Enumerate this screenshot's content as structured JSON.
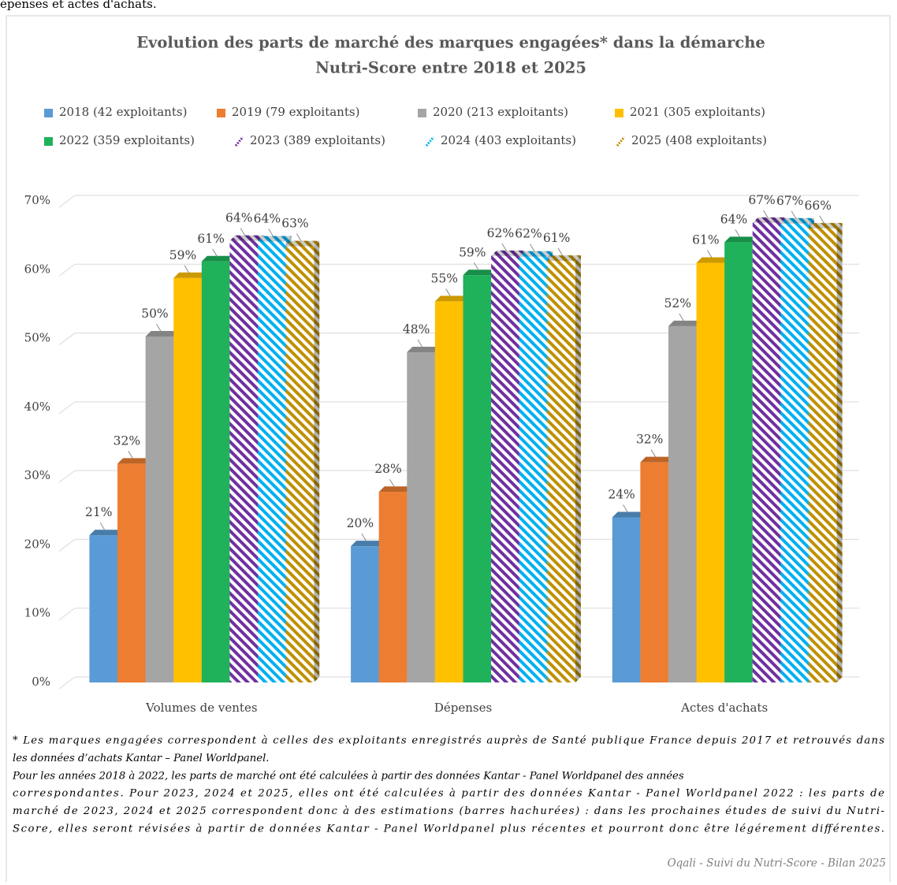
{
  "intro": "épenses et actes d'achats.",
  "chart_data": {
    "type": "bar",
    "title": [
      "Evolution des parts de marché des marques engagées* dans la démarche",
      "Nutri-Score entre 2018 et 2025"
    ],
    "categories": [
      "Volumes de ventes",
      "Dépenses",
      "Actes d'achats"
    ],
    "series": [
      {
        "name": "2018 (42 exploitants)",
        "color": "#5b9bd5",
        "hatched": false,
        "values": [
          21.4,
          19.8,
          24.0
        ],
        "value_labels": [
          "21%",
          "20%",
          "24%"
        ]
      },
      {
        "name": "2019 (79 exploitants)",
        "color": "#ed7d31",
        "hatched": false,
        "values": [
          31.8,
          27.7,
          32.0
        ],
        "value_labels": [
          "32%",
          "28%",
          "32%"
        ]
      },
      {
        "name": "2020 (213 exploitants)",
        "color": "#a5a5a5",
        "hatched": false,
        "values": [
          50.3,
          48.0,
          51.8
        ],
        "value_labels": [
          "50%",
          "48%",
          "52%"
        ]
      },
      {
        "name": "2021 (305 exploitants)",
        "color": "#ffc000",
        "hatched": false,
        "values": [
          58.8,
          55.4,
          61.0
        ],
        "value_labels": [
          "59%",
          "55%",
          "61%"
        ]
      },
      {
        "name": "2022 (359 exploitants)",
        "color": "#1fb25a",
        "hatched": false,
        "values": [
          61.2,
          59.2,
          64.0
        ],
        "value_labels": [
          "61%",
          "59%",
          "64%"
        ]
      },
      {
        "name": "2023 (389 exploitants)",
        "color": "#7030a0",
        "hatched": true,
        "values": [
          64.2,
          62.0,
          66.8
        ],
        "value_labels": [
          "64%",
          "62%",
          "67%"
        ]
      },
      {
        "name": "2024 (403 exploitants)",
        "color": "#00b0f0",
        "hatched": true,
        "values": [
          64.1,
          61.9,
          66.7
        ],
        "value_labels": [
          "64%",
          "62%",
          "67%"
        ]
      },
      {
        "name": "2025 (408 exploitants)",
        "color": "#bf9000",
        "hatched": true,
        "values": [
          63.4,
          61.3,
          66.0
        ],
        "value_labels": [
          "63%",
          "61%",
          "66%"
        ]
      }
    ],
    "ylim": [
      0,
      70
    ],
    "yticks": [
      {
        "value": 0,
        "label": "0%"
      },
      {
        "value": 10,
        "label": "10%"
      },
      {
        "value": 20,
        "label": "20%"
      },
      {
        "value": 30,
        "label": "30%"
      },
      {
        "value": 40,
        "label": "40%"
      },
      {
        "value": 50,
        "label": "50%"
      },
      {
        "value": 60,
        "label": "60%"
      },
      {
        "value": 70,
        "label": "70%"
      }
    ],
    "grid": true,
    "legend": "top"
  },
  "notes": [
    "* Les marques engagées correspondent à celles des exploitants enregistrés auprès de Santé publique France depuis 2017 et retrouvés dans",
    "les données d’achats Kantar – Panel Worldpanel.",
    "Pour les années 2018 à 2022, les parts de marché ont été calculées à partir des données Kantar - Panel Worldpanel des années",
    "correspondantes. Pour 2023, 2024 et 2025, elles ont été calculées à partir des données Kantar - Panel Worldpanel 2022 : les parts de",
    "marché de 2023, 2024 et 2025 correspondent donc à des estimations (barres hachurées) : dans les prochaines études de suivi du Nutri-",
    "Score, elles seront révisées à partir de données Kantar - Panel Worldpanel plus récentes et pourront donc être légérement différentes."
  ],
  "source": "Oqali - Suivi du Nutri-Score - Bilan 2025"
}
